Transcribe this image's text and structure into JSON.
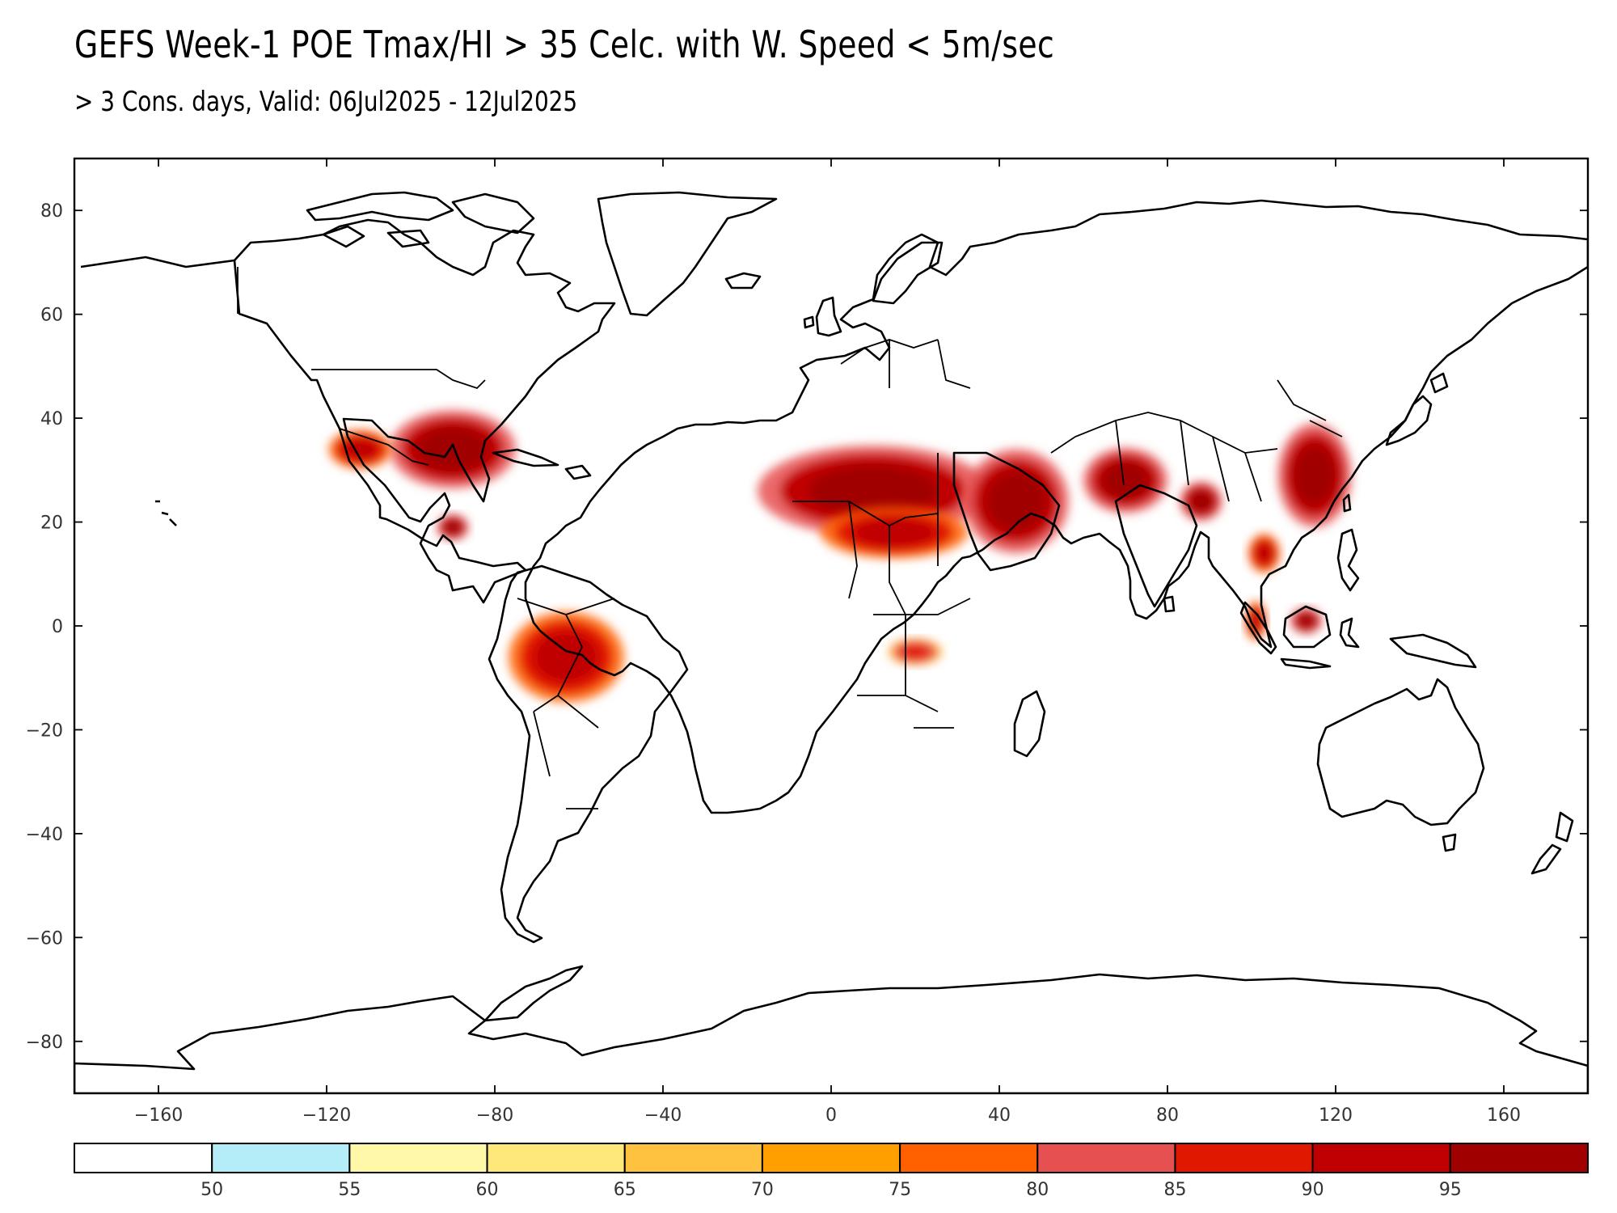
{
  "title": "GEFS Week-1 POE Tmax/HI > 35 Celc. with W. Speed < 5m/sec",
  "subtitle": "> 3 Cons. days, Valid: 06Jul2025 - 12Jul2025",
  "map": {
    "lon_range": [
      -180,
      180
    ],
    "lat_range": [
      -90,
      90
    ],
    "lon_ticks": [
      -160,
      -120,
      -80,
      -40,
      0,
      40,
      80,
      120,
      160
    ],
    "lon_tick_labels": [
      "−160",
      "−120",
      "−80",
      "−40",
      "0",
      "40",
      "80",
      "120",
      "160"
    ],
    "lat_ticks": [
      80,
      60,
      40,
      20,
      0,
      -20,
      -40,
      -60,
      -80
    ],
    "lat_tick_labels": [
      "80",
      "60",
      "40",
      "20",
      "0",
      "−20",
      "−40",
      "−60",
      "−80"
    ]
  },
  "colorbar": {
    "labels": [
      "50",
      "55",
      "60",
      "65",
      "70",
      "75",
      "80",
      "85",
      "90",
      "95"
    ],
    "colors": [
      "#ffffff",
      "#b4ecf8",
      "#fff8a8",
      "#ffe87a",
      "#ffc240",
      "#ffa000",
      "#ff6000",
      "#e65050",
      "#e01800",
      "#c00000",
      "#a00000"
    ]
  },
  "hotspots": [
    {
      "region": "US South/East",
      "lon": -90,
      "lat": 34,
      "rx": 12,
      "ry": 6,
      "level": 10
    },
    {
      "region": "US Southwest",
      "lon": -112,
      "lat": 34,
      "rx": 6,
      "ry": 3,
      "level": 9
    },
    {
      "region": "Yucatan",
      "lon": -90,
      "lat": 19,
      "rx": 3,
      "ry": 2,
      "level": 10
    },
    {
      "region": "Amazon",
      "lon": -63,
      "lat": -6,
      "rx": 11,
      "ry": 7,
      "level": 9
    },
    {
      "region": "North Africa",
      "lon": 10,
      "lat": 26,
      "rx": 22,
      "ry": 7,
      "level": 10
    },
    {
      "region": "Sahel",
      "lon": 15,
      "lat": 18,
      "rx": 14,
      "ry": 4,
      "level": 9
    },
    {
      "region": "Arabia",
      "lon": 44,
      "lat": 24,
      "rx": 10,
      "ry": 8,
      "level": 10
    },
    {
      "region": "Pakistan/NW India",
      "lon": 70,
      "lat": 28,
      "rx": 8,
      "ry": 5,
      "level": 10
    },
    {
      "region": "Bangladesh",
      "lon": 88,
      "lat": 24,
      "rx": 4,
      "ry": 3,
      "level": 10
    },
    {
      "region": "East China",
      "lon": 115,
      "lat": 29,
      "rx": 7,
      "ry": 8,
      "level": 10
    },
    {
      "region": "Congo",
      "lon": 20,
      "lat": -5,
      "rx": 5,
      "ry": 2,
      "level": 8
    },
    {
      "region": "Indochina",
      "lon": 103,
      "lat": 14,
      "rx": 3,
      "ry": 3,
      "level": 9
    },
    {
      "region": "Borneo",
      "lon": 113,
      "lat": 1,
      "rx": 3,
      "ry": 2,
      "level": 10
    },
    {
      "region": "Sumatra",
      "lon": 101,
      "lat": 1,
      "rx": 2,
      "ry": 3,
      "level": 9
    }
  ]
}
